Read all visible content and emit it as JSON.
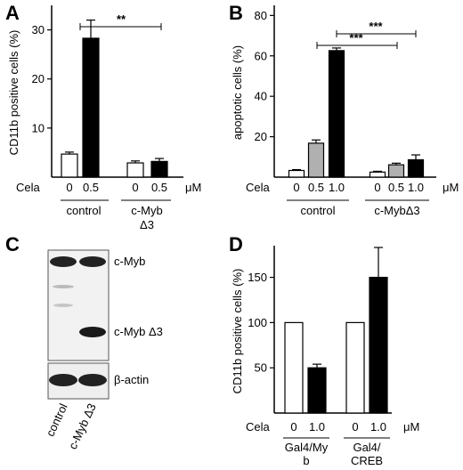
{
  "panels": {
    "A": {
      "label": "A",
      "ylabel": "CD11b positive cells (%)",
      "cela_label": "Cela",
      "unit": "μM",
      "doses": [
        "0",
        "0.5",
        "0",
        "0.5"
      ],
      "groups": [
        "control",
        "c-Myb",
        "Δ3"
      ],
      "significance": "**"
    },
    "B": {
      "label": "B",
      "ylabel": "apoptotic cells (%)",
      "cela_label": "Cela",
      "unit": "μM",
      "doses": [
        "0",
        "0.5",
        "1.0",
        "0",
        "0.5",
        "1.0"
      ],
      "groups": [
        "control",
        "c-MybΔ3"
      ],
      "significance": [
        "***",
        "***"
      ]
    },
    "C": {
      "label": "C",
      "blot_labels": [
        "c-Myb",
        "c-Myb Δ3",
        "β-actin"
      ],
      "lane_labels": [
        "control",
        "c-Myb Δ3"
      ]
    },
    "D": {
      "label": "D",
      "ylabel": "CD11b positive cells (%)",
      "cela_label": "Cela",
      "unit": "μM",
      "doses": [
        "0",
        "1.0",
        "0",
        "1.0"
      ],
      "groups": [
        "Gal4/My",
        "b",
        "Gal4/",
        "CREB"
      ]
    }
  },
  "chart_data": [
    {
      "type": "bar",
      "panel": "A",
      "ylabel": "CD11b positive cells (%)",
      "ylim": [
        0,
        35
      ],
      "yticks": [
        10,
        20,
        30
      ],
      "categories": [
        "control 0",
        "control 0.5",
        "c-Myb Δ3 0",
        "c-Myb Δ3 0.5"
      ],
      "values": [
        4.7,
        28.3,
        2.9,
        3.2
      ],
      "errors": [
        0.4,
        3.7,
        0.4,
        0.6
      ],
      "colors": [
        "#ffffff",
        "#000000",
        "#ffffff",
        "#000000"
      ]
    },
    {
      "type": "bar",
      "panel": "B",
      "ylabel": "apoptotic cells (%)",
      "ylim": [
        0,
        85
      ],
      "yticks": [
        20,
        40,
        60,
        80
      ],
      "categories": [
        "control 0",
        "control 0.5",
        "control 1.0",
        "c-MybΔ3 0",
        "c-MybΔ3 0.5",
        "c-MybΔ3 1.0"
      ],
      "values": [
        3.3,
        16.8,
        62.6,
        2.5,
        6.1,
        8.6
      ],
      "errors": [
        0.4,
        1.6,
        1.3,
        0.4,
        0.8,
        2.4
      ],
      "colors": [
        "#ffffff",
        "#b0b0b0",
        "#000000",
        "#ffffff",
        "#b0b0b0",
        "#000000"
      ]
    },
    {
      "type": "bar",
      "panel": "D",
      "ylabel": "CD11b positive cells (%)",
      "ylim": [
        0,
        185
      ],
      "yticks": [
        50,
        100,
        150
      ],
      "categories": [
        "Gal4/Myb 0",
        "Gal4/Myb 1.0",
        "Gal4/CREB 0",
        "Gal4/CREB 1.0"
      ],
      "values": [
        100,
        50,
        100,
        150
      ],
      "errors": [
        0,
        4,
        0,
        33
      ],
      "colors": [
        "#ffffff",
        "#000000",
        "#ffffff",
        "#000000"
      ]
    }
  ]
}
